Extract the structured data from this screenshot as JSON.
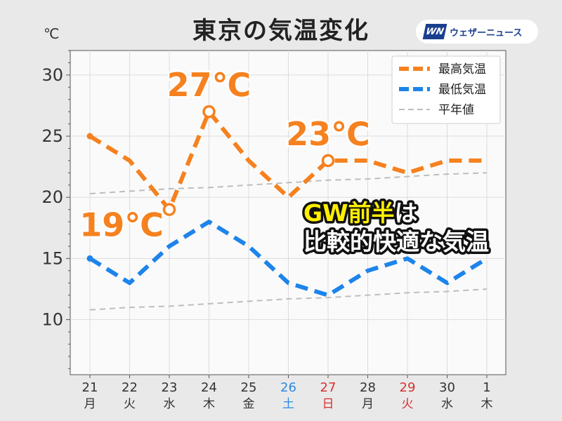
{
  "title": "東京の気温変化",
  "unit": "℃",
  "logo": {
    "mark": "WN",
    "text": "ウェザーニュース"
  },
  "colors": {
    "high": "#f5811f",
    "low": "#1d84ea",
    "normal": "#bdbdbd",
    "sat": "#2a8ae0",
    "sun": "#d93030",
    "text": "#333333"
  },
  "chart_data": {
    "type": "line",
    "title": "東京の気温変化",
    "ylim": [
      5.5,
      32
    ],
    "yticks": [
      10,
      15,
      20,
      25,
      30
    ],
    "grid": true,
    "legend_position": "top-right",
    "categories": [
      {
        "day": "21",
        "dow": "月",
        "type": "weekday"
      },
      {
        "day": "22",
        "dow": "火",
        "type": "weekday"
      },
      {
        "day": "23",
        "dow": "水",
        "type": "weekday"
      },
      {
        "day": "24",
        "dow": "木",
        "type": "weekday"
      },
      {
        "day": "25",
        "dow": "金",
        "type": "weekday"
      },
      {
        "day": "26",
        "dow": "土",
        "type": "sat"
      },
      {
        "day": "27",
        "dow": "日",
        "type": "sun"
      },
      {
        "day": "28",
        "dow": "月",
        "type": "weekday"
      },
      {
        "day": "29",
        "dow": "火",
        "type": "sun"
      },
      {
        "day": "30",
        "dow": "水",
        "type": "weekday"
      },
      {
        "day": "1",
        "dow": "木",
        "type": "weekday"
      }
    ],
    "series": [
      {
        "name": "最高気温",
        "key": "high",
        "values": [
          25,
          23,
          19,
          27,
          23,
          20,
          23,
          23,
          22,
          23,
          23
        ]
      },
      {
        "name": "最低気温",
        "key": "low",
        "values": [
          15,
          13,
          16,
          18,
          16,
          13,
          12,
          14,
          15,
          13,
          15
        ]
      },
      {
        "name": "平年値",
        "key": "normal",
        "values": [
          20.3,
          20.5,
          20.7,
          20.8,
          21.0,
          21.2,
          21.4,
          21.5,
          21.7,
          21.9,
          22.0
        ]
      },
      {
        "name": "平年値",
        "key": "normal_low",
        "values": [
          10.8,
          11.0,
          11.1,
          11.3,
          11.5,
          11.7,
          11.8,
          12.0,
          12.2,
          12.3,
          12.5
        ]
      }
    ],
    "annotations": [
      {
        "text": "27℃",
        "index": 3,
        "value": 27,
        "placement": "above"
      },
      {
        "text": "19℃",
        "index": 2,
        "value": 19,
        "placement": "left"
      },
      {
        "text": "23℃",
        "index": 6,
        "value": 23,
        "placement": "above"
      }
    ],
    "callout": {
      "line1_highlight": "GW前半",
      "line1_rest": "は",
      "line2": "比較的快適な気温"
    }
  }
}
